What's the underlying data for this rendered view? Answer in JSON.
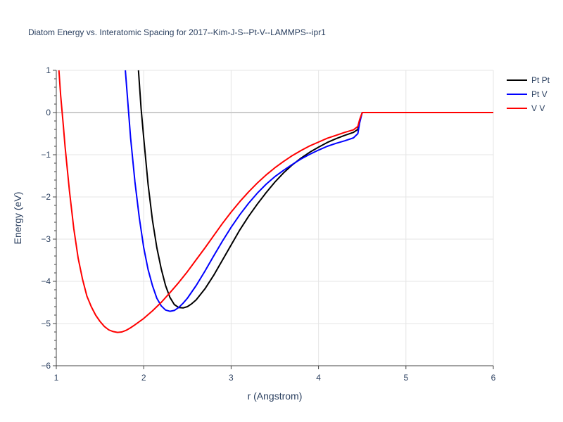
{
  "chart_data": {
    "type": "line",
    "title": "Diatom Energy vs. Interatomic Spacing for 2017--Kim-J-S--Pt-V--LAMMPS--ipr1",
    "xlabel": "r (Angstrom)",
    "ylabel": "Energy (eV)",
    "xlim": [
      1,
      6
    ],
    "ylim": [
      -6,
      1
    ],
    "xticks": [
      1,
      2,
      3,
      4,
      5,
      6
    ],
    "xtick_labels": [
      "1",
      "2",
      "3",
      "4",
      "5",
      "6"
    ],
    "yticks": [
      1,
      0,
      -1,
      -2,
      -3,
      -4,
      -5,
      -6
    ],
    "ytick_labels": [
      "1",
      "0",
      "−1",
      "−2",
      "−3",
      "−4",
      "−5",
      "−6"
    ],
    "grid": true,
    "legend_position": "right",
    "series": [
      {
        "name": "Pt Pt",
        "color": "#000000",
        "x": [
          1.94,
          1.97,
          2.0,
          2.05,
          2.1,
          2.15,
          2.2,
          2.25,
          2.3,
          2.35,
          2.4,
          2.45,
          2.5,
          2.55,
          2.6,
          2.7,
          2.8,
          2.9,
          3.0,
          3.1,
          3.2,
          3.3,
          3.4,
          3.5,
          3.6,
          3.7,
          3.8,
          3.9,
          4.0,
          4.1,
          4.2,
          4.3,
          4.4,
          4.45,
          4.47,
          4.5,
          5.0,
          5.5,
          6.0
        ],
        "y": [
          1.0,
          0.1,
          -0.6,
          -1.7,
          -2.55,
          -3.2,
          -3.7,
          -4.1,
          -4.38,
          -4.55,
          -4.62,
          -4.63,
          -4.6,
          -4.53,
          -4.44,
          -4.18,
          -3.86,
          -3.5,
          -3.14,
          -2.78,
          -2.46,
          -2.17,
          -1.9,
          -1.65,
          -1.43,
          -1.24,
          -1.08,
          -0.94,
          -0.82,
          -0.71,
          -0.62,
          -0.54,
          -0.47,
          -0.4,
          -0.2,
          0.0,
          0.0,
          0.0,
          0.0
        ]
      },
      {
        "name": "Pt V",
        "color": "#0000ff",
        "x": [
          1.79,
          1.82,
          1.85,
          1.9,
          1.95,
          2.0,
          2.05,
          2.1,
          2.15,
          2.2,
          2.25,
          2.3,
          2.35,
          2.4,
          2.45,
          2.5,
          2.6,
          2.7,
          2.8,
          2.9,
          3.0,
          3.1,
          3.2,
          3.3,
          3.4,
          3.5,
          3.6,
          3.7,
          3.8,
          3.9,
          4.0,
          4.1,
          4.2,
          4.3,
          4.4,
          4.45,
          4.47,
          4.5,
          5.0,
          5.5,
          6.0
        ],
        "y": [
          1.0,
          0.2,
          -0.6,
          -1.65,
          -2.5,
          -3.2,
          -3.72,
          -4.1,
          -4.4,
          -4.58,
          -4.68,
          -4.71,
          -4.69,
          -4.62,
          -4.52,
          -4.4,
          -4.1,
          -3.76,
          -3.4,
          -3.05,
          -2.72,
          -2.42,
          -2.15,
          -1.91,
          -1.7,
          -1.52,
          -1.37,
          -1.23,
          -1.1,
          -0.99,
          -0.89,
          -0.8,
          -0.73,
          -0.67,
          -0.6,
          -0.5,
          -0.25,
          0.0,
          0.0,
          0.0,
          0.0
        ]
      },
      {
        "name": "V V",
        "color": "#ff0000",
        "x": [
          1.03,
          1.05,
          1.08,
          1.1,
          1.15,
          1.2,
          1.25,
          1.3,
          1.35,
          1.4,
          1.45,
          1.5,
          1.55,
          1.6,
          1.65,
          1.7,
          1.75,
          1.8,
          1.85,
          1.9,
          2.0,
          2.1,
          2.2,
          2.3,
          2.4,
          2.5,
          2.6,
          2.7,
          2.8,
          2.9,
          3.0,
          3.1,
          3.2,
          3.3,
          3.4,
          3.5,
          3.6,
          3.7,
          3.8,
          3.9,
          4.0,
          4.1,
          4.2,
          4.3,
          4.4,
          4.45,
          4.47,
          4.5,
          5.0,
          5.5,
          6.0
        ],
        "y": [
          1.0,
          0.4,
          -0.3,
          -0.8,
          -1.85,
          -2.75,
          -3.45,
          -3.95,
          -4.35,
          -4.6,
          -4.8,
          -4.95,
          -5.07,
          -5.15,
          -5.19,
          -5.21,
          -5.2,
          -5.16,
          -5.1,
          -5.03,
          -4.88,
          -4.7,
          -4.5,
          -4.27,
          -4.03,
          -3.77,
          -3.49,
          -3.21,
          -2.92,
          -2.63,
          -2.36,
          -2.11,
          -1.88,
          -1.67,
          -1.48,
          -1.31,
          -1.16,
          -1.02,
          -0.9,
          -0.79,
          -0.7,
          -0.61,
          -0.54,
          -0.47,
          -0.41,
          -0.33,
          -0.17,
          0.0,
          0.0,
          0.0,
          0.0
        ]
      }
    ]
  }
}
